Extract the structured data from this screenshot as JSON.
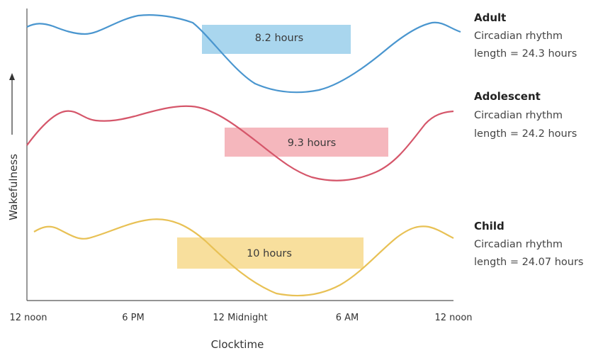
{
  "chart_data": {
    "type": "line",
    "xlabel": "Clocktime",
    "ylabel": "Wakefulness",
    "x_ticks": [
      "12 noon",
      "6 PM",
      "12 Midnight",
      "6 AM",
      "12 noon"
    ],
    "series": [
      {
        "name": "Adult",
        "desc_line1": "Circadian rhythm",
        "desc_line2": "length = 24.3 hours",
        "color": "#4a96cf",
        "band_color": "#a9d6ee",
        "sleep_label": "8.2 hours"
      },
      {
        "name": "Adolescent",
        "desc_line1": "Circadian rhythm",
        "desc_line2": "length = 24.2 hours",
        "color": "#d5566a",
        "band_color": "#f5b7bd",
        "sleep_label": "9.3 hours"
      },
      {
        "name": "Child",
        "desc_line1": "Circadian rhythm",
        "desc_line2": "length = 24.07 hours",
        "color": "#e8c155",
        "band_color": "#f8df9d",
        "sleep_label": "10 hours"
      }
    ]
  }
}
